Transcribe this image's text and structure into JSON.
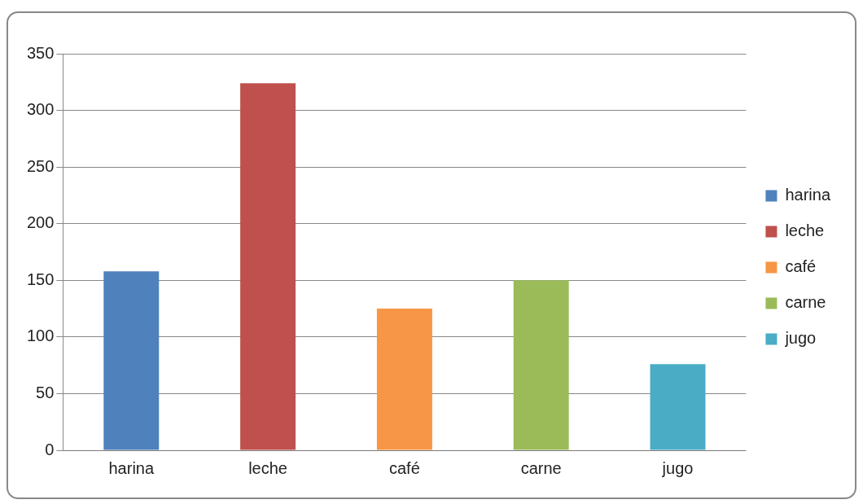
{
  "chart_data": {
    "type": "bar",
    "categories": [
      "harina",
      "leche",
      "café",
      "carne",
      "jugo"
    ],
    "series": [
      {
        "name": "harina",
        "color": "#4f81bd",
        "values": [
          158,
          null,
          null,
          null,
          null
        ]
      },
      {
        "name": "leche",
        "color": "#c0504d",
        "values": [
          null,
          324,
          null,
          null,
          null
        ]
      },
      {
        "name": "café",
        "color": "#f79646",
        "values": [
          null,
          null,
          125,
          null,
          null
        ]
      },
      {
        "name": "carne",
        "color": "#9bbb59",
        "values": [
          null,
          null,
          null,
          150,
          null
        ]
      },
      {
        "name": "jugo",
        "color": "#4bacc6",
        "values": [
          null,
          null,
          null,
          null,
          76
        ]
      }
    ],
    "ylim": [
      0,
      350
    ],
    "yticks": [
      0,
      50,
      100,
      150,
      200,
      250,
      300,
      350
    ],
    "grid": "y",
    "legend": "right"
  }
}
